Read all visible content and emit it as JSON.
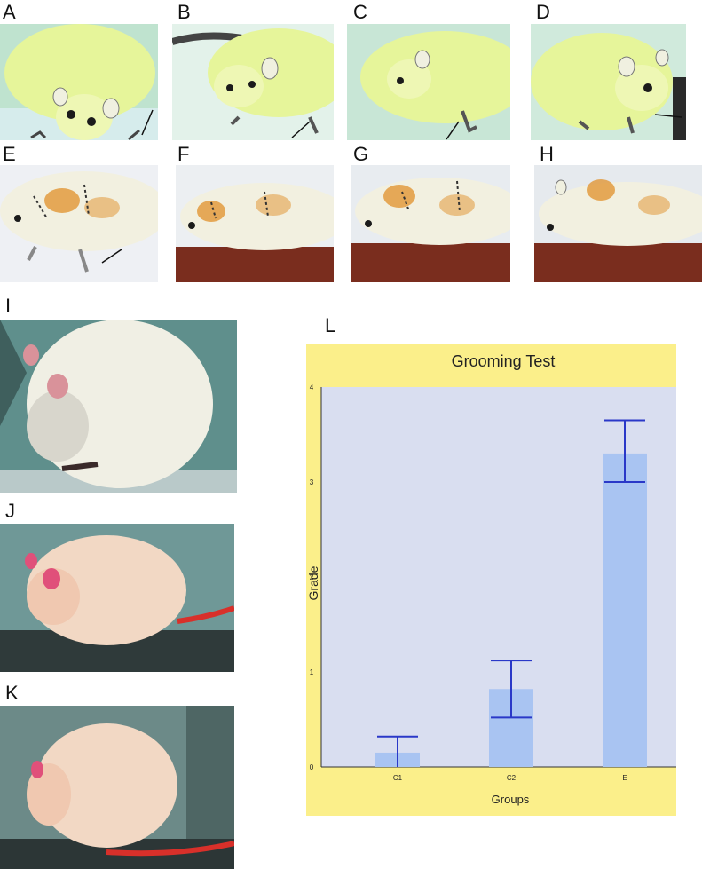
{
  "figure": {
    "panels": {
      "A": "A",
      "B": "B",
      "C": "C",
      "D": "D",
      "E": "E",
      "F": "F",
      "G": "G",
      "H": "H",
      "I": "I",
      "J": "J",
      "K": "K",
      "L": "L"
    },
    "colors": {
      "photo_green_bg": "#bfe3cf",
      "rat_green": "#e6f59a",
      "rat_white": "#f2f0e0",
      "stain_orange": "#e0902a",
      "wood_floor": "#7a2d1e",
      "teal_wall": "#5f8f8c",
      "chart_frame": "#fbef8a",
      "plot_bg": "#d9def0",
      "bar_fill": "#a9c4f2",
      "error_bar": "#2a38c8"
    }
  },
  "chart_data": {
    "type": "bar",
    "title": "Grooming Test",
    "xlabel": "Groups",
    "ylabel": "Grade",
    "categories": [
      "C1",
      "C2",
      "E"
    ],
    "values": [
      0.15,
      0.82,
      3.3
    ],
    "error_low": [
      0.0,
      0.52,
      3.0
    ],
    "error_high": [
      0.32,
      1.12,
      3.65
    ],
    "yticks": [
      "0",
      "1",
      "2",
      "3",
      "4"
    ],
    "ylim": [
      0,
      4
    ],
    "grid": false,
    "legend": "none"
  }
}
